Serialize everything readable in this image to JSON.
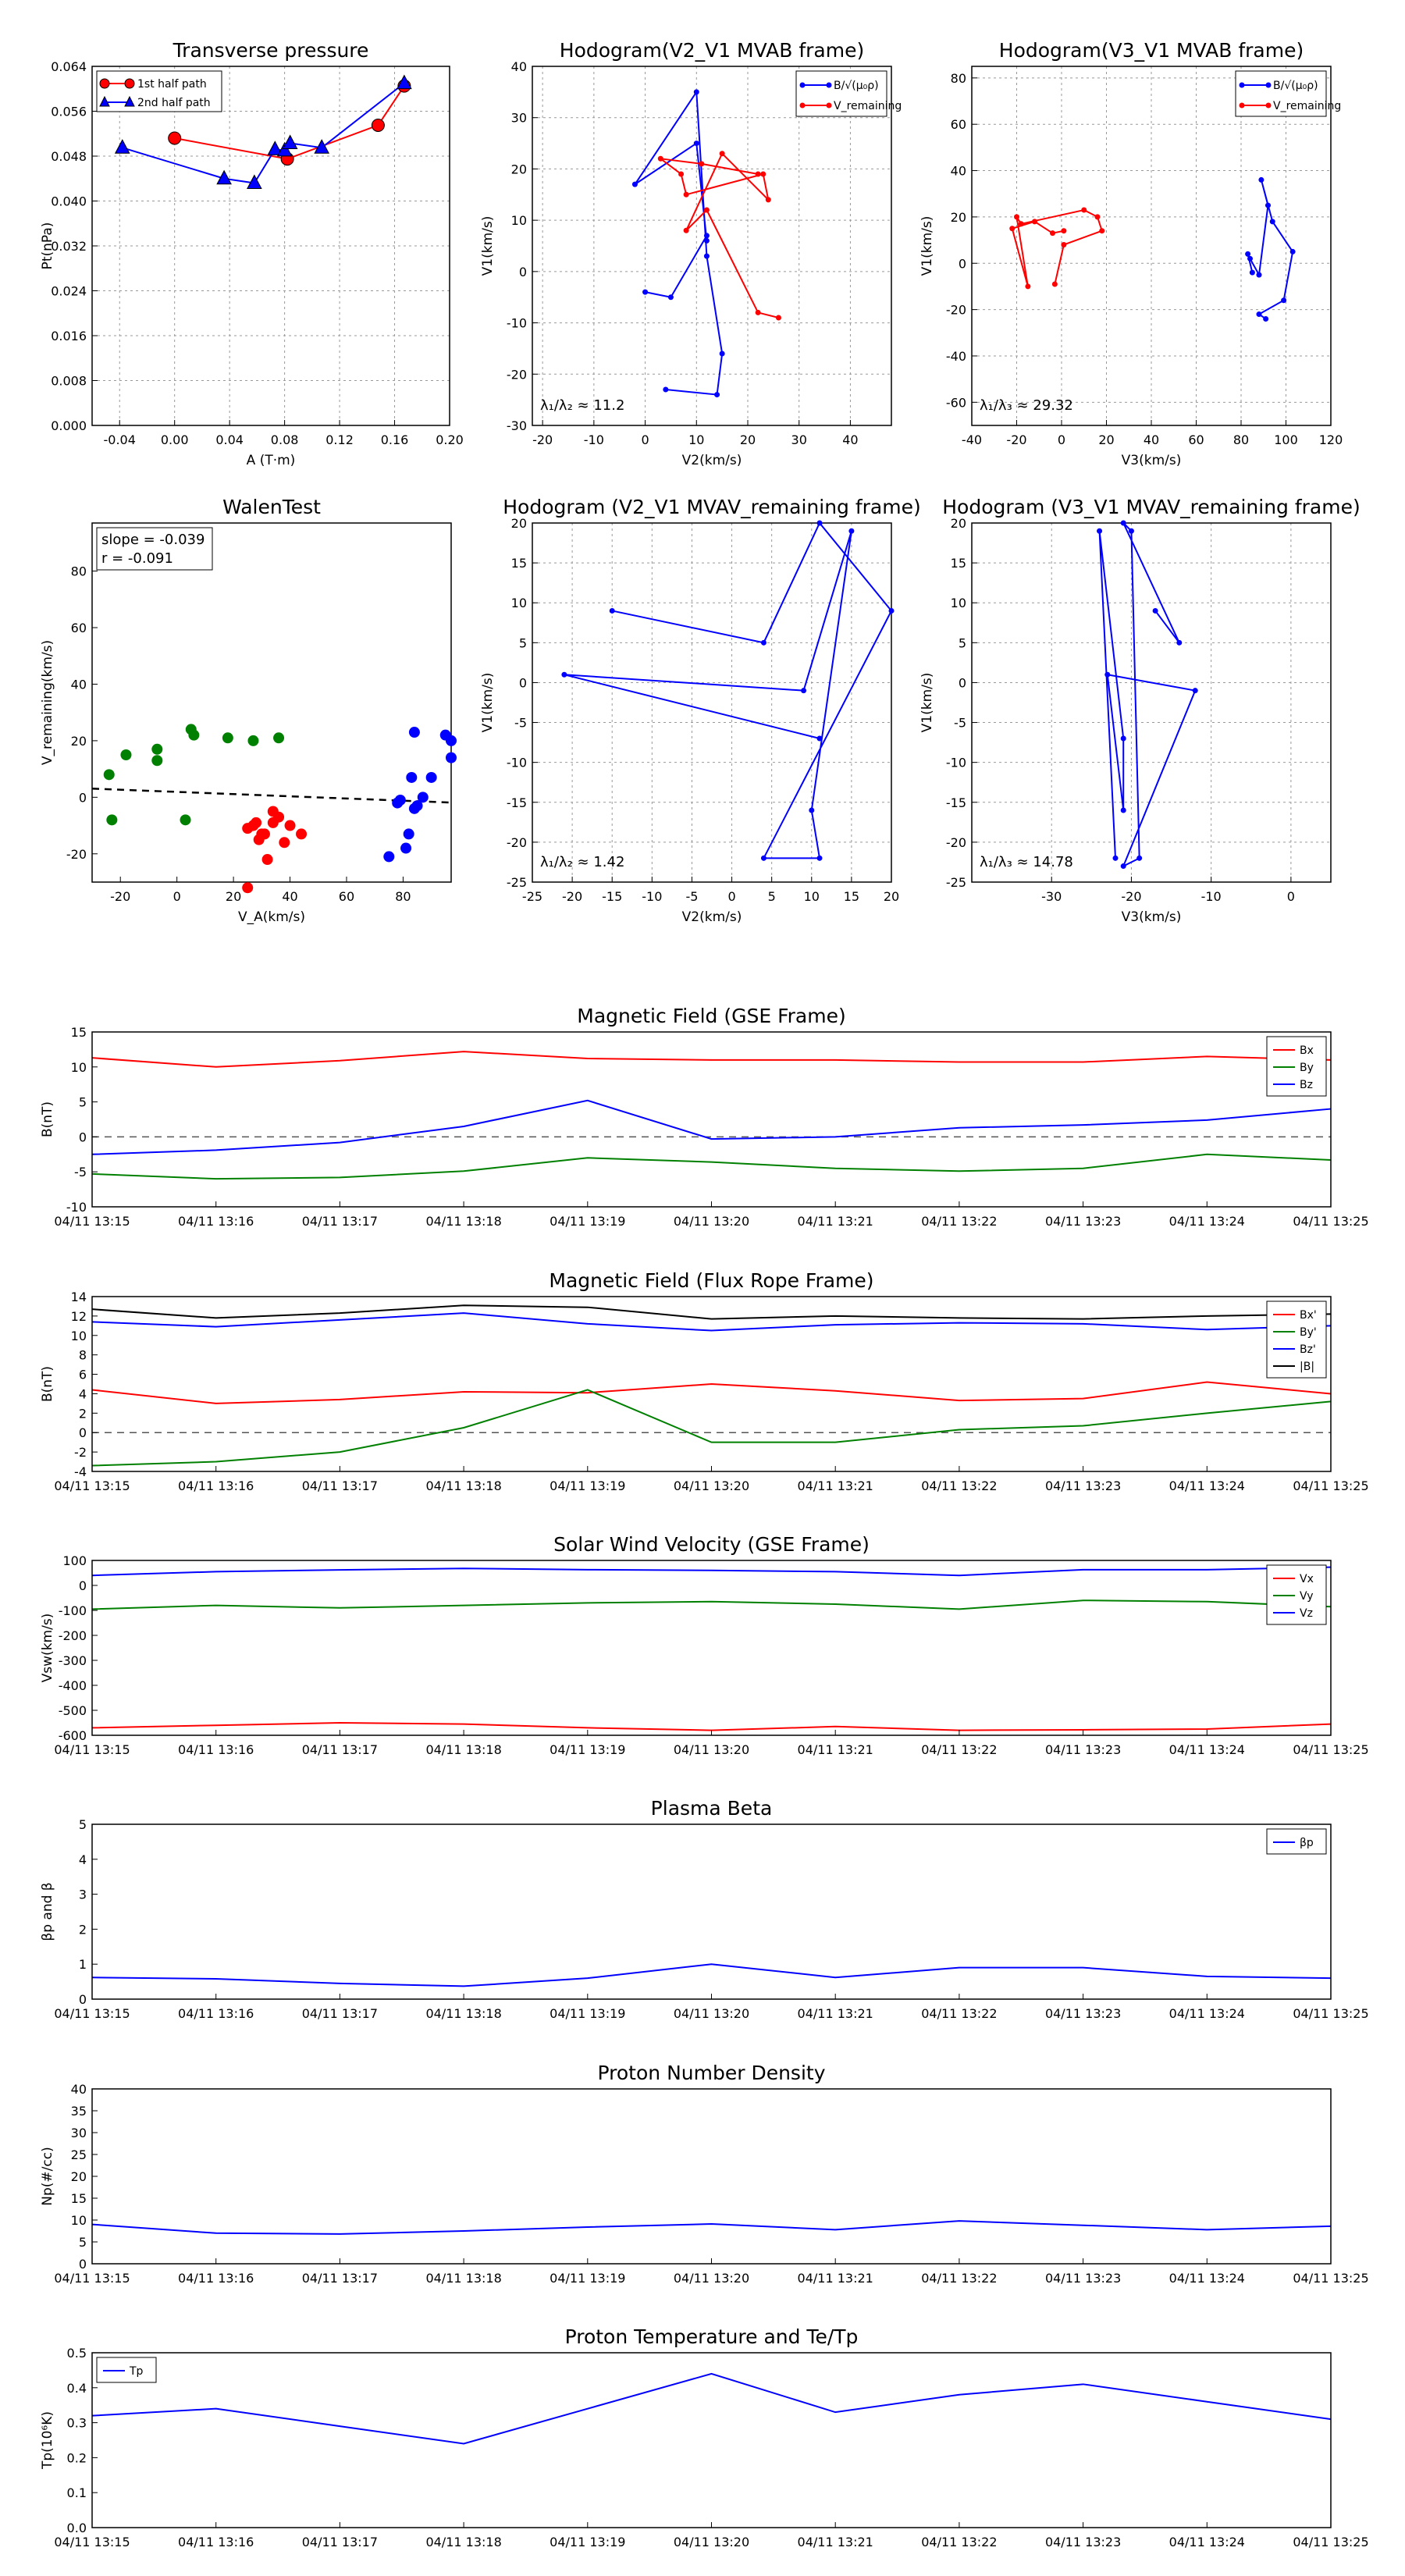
{
  "colors": {
    "red": "#ff0000",
    "blue": "#0000ff",
    "green": "#008000",
    "black": "#000000",
    "grid": "#999999"
  },
  "chart_data": [
    {
      "id": "tp",
      "type": "line",
      "title": "Transverse pressure",
      "xlabel": "A (T·m)",
      "ylabel": "Pt(nPa)",
      "xlim": [
        -0.06,
        0.2
      ],
      "ylim": [
        0,
        0.064
      ],
      "xticks": [
        "-0.04",
        "0.00",
        "0.04",
        "0.08",
        "0.12",
        "0.16",
        "0.20"
      ],
      "yticks": [
        "0.000",
        "0.008",
        "0.016",
        "0.024",
        "0.032",
        "0.040",
        "0.048",
        "0.056",
        "0.064"
      ],
      "legend": [
        "1st half path",
        "2nd half path"
      ],
      "series": [
        {
          "name": "1st half path",
          "color": "red",
          "marker": "circle",
          "x": [
            0.0,
            0.082,
            0.148,
            0.167
          ],
          "y": [
            0.0512,
            0.0475,
            0.0535,
            0.0605
          ]
        },
        {
          "name": "2nd half path",
          "color": "blue",
          "marker": "triangle",
          "x": [
            -0.038,
            0.036,
            0.058,
            0.073,
            0.08,
            0.084,
            0.107,
            0.167
          ],
          "y": [
            0.0495,
            0.044,
            0.0432,
            0.0492,
            0.049,
            0.0503,
            0.0495,
            0.061
          ]
        }
      ]
    },
    {
      "id": "h21",
      "type": "line",
      "title": "Hodogram(V2_V1 MVAB frame)",
      "xlabel": "V2(km/s)",
      "ylabel": "V1(km/s)",
      "xlim": [
        -22,
        48
      ],
      "ylim": [
        -30,
        40
      ],
      "xticks": [
        "-20",
        "-10",
        "0",
        "10",
        "20",
        "30",
        "40"
      ],
      "yticks": [
        "-30",
        "-20",
        "-10",
        "0",
        "10",
        "20",
        "30",
        "40"
      ],
      "legend": [
        "B/√(μ₀ρ)",
        "V_remaining"
      ],
      "annotation": "λ₁/λ₂ ≈ 11.2",
      "series": [
        {
          "name": "B",
          "color": "blue",
          "x": [
            4,
            14,
            15,
            12,
            10,
            -2,
            10,
            12,
            12,
            5,
            0
          ],
          "y": [
            -23,
            -24,
            -16,
            3,
            35,
            17,
            25,
            6,
            7,
            -5,
            -4
          ]
        },
        {
          "name": "V",
          "color": "red",
          "x": [
            26,
            22,
            12,
            8,
            15,
            24,
            23,
            8,
            7,
            3,
            11,
            22
          ],
          "y": [
            -9,
            -8,
            12,
            8,
            23,
            14,
            19,
            15,
            19,
            22,
            21,
            19
          ]
        }
      ]
    },
    {
      "id": "h31",
      "type": "line",
      "title": "Hodogram(V3_V1 MVAB frame)",
      "xlabel": "V3(km/s)",
      "ylabel": "V1(km/s)",
      "xlim": [
        -40,
        120
      ],
      "ylim": [
        -70,
        85
      ],
      "xticks": [
        "-40",
        "-20",
        "0",
        "20",
        "40",
        "60",
        "80",
        "100",
        "120"
      ],
      "yticks": [
        "-60",
        "-40",
        "-20",
        "0",
        "20",
        "40",
        "60",
        "80"
      ],
      "legend": [
        "B/√(μ₀ρ)",
        "V_remaining"
      ],
      "annotation": "λ₁/λ₃ ≈ 29.32",
      "series": [
        {
          "name": "B",
          "color": "blue",
          "x": [
            91,
            88,
            99,
            103,
            94,
            89,
            92,
            88,
            84,
            83,
            85
          ],
          "y": [
            -24,
            -22,
            -16,
            5,
            18,
            36,
            25,
            -5,
            2,
            4,
            -4
          ]
        },
        {
          "name": "V",
          "color": "red",
          "x": [
            -3,
            1,
            18,
            16,
            10,
            -18,
            -20,
            -15,
            -22,
            -12,
            -4,
            1
          ],
          "y": [
            -9,
            8,
            14,
            20,
            23,
            17,
            20,
            -10,
            15,
            18,
            13,
            14
          ]
        }
      ]
    },
    {
      "id": "walen",
      "type": "scatter",
      "title": "WalenTest",
      "xlabel": "V_A(km/s)",
      "ylabel": "V_remaining(km/s)",
      "xlim": [
        -30,
        97
      ],
      "ylim": [
        -30,
        97
      ],
      "xticks": [
        "-20",
        "0",
        "20",
        "40",
        "60",
        "80"
      ],
      "yticks": [
        "-20",
        "0",
        "20",
        "40",
        "60",
        "80"
      ],
      "stats": [
        "slope = -0.039",
        "r = -0.091"
      ],
      "fit": {
        "slope": -0.039,
        "intercept": 1.9
      },
      "series": [
        {
          "name": "green",
          "color": "green",
          "x": [
            -24,
            -23,
            -18,
            -7,
            -7,
            3,
            5,
            6,
            18,
            27,
            36
          ],
          "y": [
            8,
            -8,
            15,
            17,
            13,
            -8,
            24,
            22,
            21,
            20,
            21
          ]
        },
        {
          "name": "red",
          "color": "red",
          "x": [
            25,
            25,
            27,
            28,
            29,
            30,
            31,
            32,
            34,
            34,
            36,
            38,
            40,
            44
          ],
          "y": [
            -32,
            -11,
            -10,
            -9,
            -15,
            -13,
            -13,
            -22,
            -9,
            -5,
            -7,
            -16,
            -10,
            -13
          ]
        },
        {
          "name": "blue",
          "color": "blue",
          "x": [
            75,
            78,
            79,
            81,
            82,
            83,
            84,
            84,
            85,
            87,
            90,
            95,
            97,
            97
          ],
          "y": [
            -21,
            -2,
            -1,
            -18,
            -13,
            7,
            23,
            -4,
            -3,
            0,
            7,
            22,
            14,
            20
          ]
        }
      ]
    },
    {
      "id": "h21r",
      "type": "line",
      "title": "Hodogram (V2_V1 MVAV_remaining frame)",
      "xlabel": "V2(km/s)",
      "ylabel": "V1(km/s)",
      "xlim": [
        -25,
        20
      ],
      "ylim": [
        -25,
        20
      ],
      "xticks": [
        "-25",
        "-20",
        "-15",
        "-10",
        "-5",
        "0",
        "5",
        "10",
        "15",
        "20"
      ],
      "yticks": [
        "-25",
        "-20",
        "-15",
        "-10",
        "-5",
        "0",
        "5",
        "10",
        "15",
        "20"
      ],
      "annotation": "λ₁/λ₂ ≈ 1.42",
      "series": [
        {
          "name": "B",
          "color": "blue",
          "x": [
            -15,
            4,
            11,
            20,
            4,
            11,
            10,
            15,
            9,
            -21,
            11
          ],
          "y": [
            9,
            5,
            20,
            9,
            -22,
            -22,
            -16,
            19,
            -1,
            1,
            -7
          ]
        }
      ]
    },
    {
      "id": "h31r",
      "type": "line",
      "title": "Hodogram (V3_V1 MVAV_remaining frame)",
      "xlabel": "V3(km/s)",
      "ylabel": "V1(km/s)",
      "xlim": [
        -40,
        5
      ],
      "ylim": [
        -25,
        20
      ],
      "xticks": [
        "-30",
        "-20",
        "-10",
        "0"
      ],
      "yticks": [
        "-25",
        "-20",
        "-15",
        "-10",
        "-5",
        "0",
        "5",
        "10",
        "15",
        "20"
      ],
      "annotation": "λ₁/λ₃ ≈ 14.78",
      "series": [
        {
          "name": "B",
          "color": "blue",
          "x": [
            -17,
            -14,
            -21,
            -20,
            -19,
            -21,
            -12,
            -23,
            -21,
            -21,
            -24,
            -22
          ],
          "y": [
            9,
            5,
            20,
            19,
            -22,
            -23,
            -1,
            1,
            -16,
            -7,
            19,
            -22
          ]
        }
      ]
    },
    {
      "id": "mf_gse",
      "type": "line",
      "title": "Magnetic Field (GSE Frame)",
      "ylabel": "B(nT)",
      "x": [
        "04/11 13:15",
        "04/11 13:16",
        "04/11 13:17",
        "04/11 13:18",
        "04/11 13:19",
        "04/11 13:20",
        "04/11 13:21",
        "04/11 13:22",
        "04/11 13:23",
        "04/11 13:24",
        "04/11 13:25"
      ],
      "ylim": [
        -10,
        15
      ],
      "yticks": [
        "-10",
        "-5",
        "0",
        "5",
        "10",
        "15"
      ],
      "zero_line": true,
      "series": [
        {
          "name": "Bx",
          "color": "red",
          "values": [
            11.3,
            10.0,
            10.9,
            12.2,
            11.2,
            11.0,
            11.0,
            10.7,
            10.7,
            11.5,
            11.0
          ]
        },
        {
          "name": "By",
          "color": "green",
          "values": [
            -5.3,
            -6.0,
            -5.8,
            -4.9,
            -3.0,
            -3.6,
            -4.5,
            -4.9,
            -4.5,
            -2.5,
            -3.3
          ]
        },
        {
          "name": "Bz",
          "color": "blue",
          "values": [
            -2.5,
            -1.9,
            -0.8,
            1.5,
            5.2,
            -0.3,
            0.0,
            1.3,
            1.7,
            2.4,
            4.0
          ]
        }
      ]
    },
    {
      "id": "mf_fr",
      "type": "line",
      "title": "Magnetic Field (Flux Rope Frame)",
      "ylabel": "B(nT)",
      "x": [
        "04/11 13:15",
        "04/11 13:16",
        "04/11 13:17",
        "04/11 13:18",
        "04/11 13:19",
        "04/11 13:20",
        "04/11 13:21",
        "04/11 13:22",
        "04/11 13:23",
        "04/11 13:24",
        "04/11 13:25"
      ],
      "ylim": [
        -4,
        14
      ],
      "yticks": [
        "-4",
        "-2",
        "0",
        "2",
        "4",
        "6",
        "8",
        "10",
        "12",
        "14"
      ],
      "zero_line": true,
      "series": [
        {
          "name": "Bx'",
          "color": "red",
          "values": [
            4.4,
            3.0,
            3.4,
            4.2,
            4.1,
            5.0,
            4.3,
            3.3,
            3.5,
            5.2,
            4.0
          ]
        },
        {
          "name": "By'",
          "color": "green",
          "values": [
            -3.4,
            -3.0,
            -2.0,
            0.5,
            4.4,
            -1.0,
            -1.0,
            0.3,
            0.7,
            2.0,
            3.2
          ]
        },
        {
          "name": "Bz'",
          "color": "blue",
          "values": [
            11.4,
            10.9,
            11.6,
            12.3,
            11.2,
            10.5,
            11.1,
            11.3,
            11.2,
            10.6,
            11.0
          ]
        },
        {
          "name": "|B|",
          "color": "black",
          "values": [
            12.7,
            11.8,
            12.3,
            13.1,
            12.9,
            11.7,
            12.0,
            11.8,
            11.7,
            12.0,
            12.2
          ]
        }
      ]
    },
    {
      "id": "vsw",
      "type": "line",
      "title": "Solar Wind Velocity (GSE Frame)",
      "ylabel": "Vsw(km/s)",
      "x": [
        "04/11 13:15",
        "04/11 13:16",
        "04/11 13:17",
        "04/11 13:18",
        "04/11 13:19",
        "04/11 13:20",
        "04/11 13:21",
        "04/11 13:22",
        "04/11 13:23",
        "04/11 13:24",
        "04/11 13:25"
      ],
      "ylim": [
        -600,
        100
      ],
      "yticks": [
        "-600",
        "-500",
        "-400",
        "-300",
        "-200",
        "-100",
        "0",
        "100"
      ],
      "series": [
        {
          "name": "Vx",
          "color": "red",
          "values": [
            -570,
            -560,
            -550,
            -555,
            -570,
            -580,
            -565,
            -580,
            -578,
            -575,
            -555
          ]
        },
        {
          "name": "Vy",
          "color": "green",
          "values": [
            -95,
            -80,
            -90,
            -80,
            -70,
            -65,
            -75,
            -95,
            -60,
            -65,
            -85
          ]
        },
        {
          "name": "Vz",
          "color": "blue",
          "values": [
            40,
            55,
            62,
            68,
            63,
            60,
            55,
            40,
            63,
            63,
            73
          ]
        }
      ]
    },
    {
      "id": "beta",
      "type": "line",
      "title": "Plasma Beta",
      "ylabel": "βp and β",
      "x": [
        "04/11 13:15",
        "04/11 13:16",
        "04/11 13:17",
        "04/11 13:18",
        "04/11 13:19",
        "04/11 13:20",
        "04/11 13:21",
        "04/11 13:22",
        "04/11 13:23",
        "04/11 13:24",
        "04/11 13:25"
      ],
      "ylim": [
        0,
        5
      ],
      "yticks": [
        "0",
        "1",
        "2",
        "3",
        "4",
        "5"
      ],
      "series": [
        {
          "name": "βp",
          "color": "blue",
          "values": [
            0.62,
            0.58,
            0.45,
            0.37,
            0.6,
            1.0,
            0.62,
            0.9,
            0.9,
            0.65,
            0.6
          ]
        }
      ]
    },
    {
      "id": "np",
      "type": "line",
      "title": "Proton Number Density",
      "ylabel": "Np(#/cc)",
      "x": [
        "04/11 13:15",
        "04/11 13:16",
        "04/11 13:17",
        "04/11 13:18",
        "04/11 13:19",
        "04/11 13:20",
        "04/11 13:21",
        "04/11 13:22",
        "04/11 13:23",
        "04/11 13:24",
        "04/11 13:25"
      ],
      "ylim": [
        0,
        40
      ],
      "yticks": [
        "0",
        "5",
        "10",
        "15",
        "20",
        "25",
        "30",
        "35",
        "40"
      ],
      "series": [
        {
          "name": "Np",
          "color": "blue",
          "values": [
            9.0,
            7.0,
            6.8,
            7.5,
            8.4,
            9.1,
            7.8,
            9.8,
            8.8,
            7.8,
            8.6
          ]
        }
      ]
    },
    {
      "id": "tp2",
      "type": "line",
      "title": "Proton Temperature and Te/Tp",
      "ylabel": "Tp(10⁶K)",
      "x": [
        "04/11 13:15",
        "04/11 13:16",
        "04/11 13:17",
        "04/11 13:18",
        "04/11 13:19",
        "04/11 13:20",
        "04/11 13:21",
        "04/11 13:22",
        "04/11 13:23",
        "04/11 13:24",
        "04/11 13:25"
      ],
      "ylim": [
        0,
        0.5
      ],
      "yticks": [
        "0.0",
        "0.1",
        "0.2",
        "0.3",
        "0.4",
        "0.5"
      ],
      "legend": [
        "Tp"
      ],
      "series": [
        {
          "name": "Tp",
          "color": "blue",
          "values": [
            0.32,
            0.34,
            0.29,
            0.24,
            0.34,
            0.44,
            0.33,
            0.38,
            0.41,
            0.36,
            0.31
          ]
        }
      ]
    }
  ]
}
